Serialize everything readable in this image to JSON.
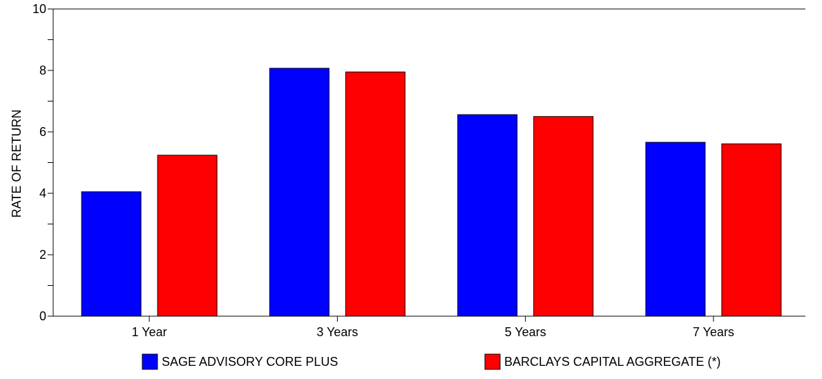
{
  "chart_data": {
    "type": "bar",
    "ylabel": "RATE OF RETURN",
    "xlabel": "",
    "ylim": [
      0,
      10
    ],
    "y_ticks": [
      0,
      2,
      4,
      6,
      8,
      10
    ],
    "y_minor_step": 1,
    "categories": [
      "1 Year",
      "3 Years",
      "5 Years",
      "7 Years"
    ],
    "series": [
      {
        "name": "SAGE ADVISORY CORE PLUS",
        "color": "#0000ff",
        "values": [
          4.05,
          8.07,
          6.56,
          5.66
        ]
      },
      {
        "name": "BARCLAYS CAPITAL AGGREGATE (*)",
        "color": "#ff0000",
        "values": [
          5.24,
          7.95,
          6.5,
          5.61
        ]
      }
    ],
    "grid": false,
    "legend_position": "bottom"
  }
}
